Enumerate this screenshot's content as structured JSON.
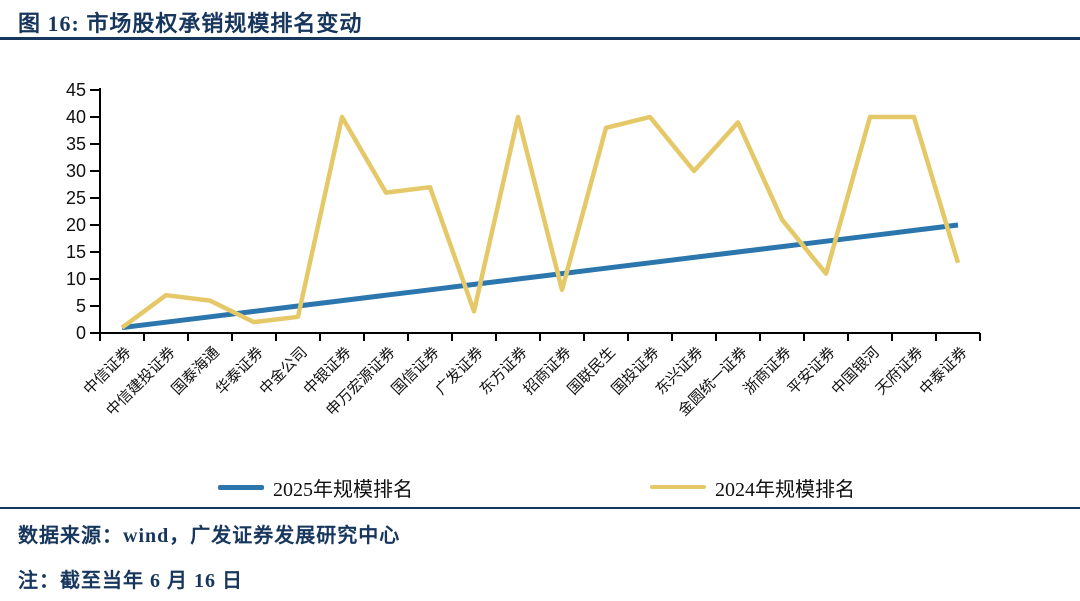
{
  "page": {
    "title": "图 16: 市场股权承销规模排名变动",
    "source": "数据来源：wind，广发证券发展研究中心",
    "note": "注：截至当年 6 月 16 日"
  },
  "colors": {
    "heading_navy": "#17365d",
    "axis_black": "#000000",
    "series_2025_blue": "#2b76ac",
    "series_2024_yellow": "#e5c868"
  },
  "chart_data": {
    "type": "line",
    "title": "市场股权承销规模排名变动",
    "categories": [
      "中信证券",
      "中信建投证券",
      "国泰海通",
      "华泰证券",
      "中金公司",
      "中银证券",
      "申万宏源证券",
      "国信证券",
      "广发证券",
      "东方证券",
      "招商证券",
      "国联民生",
      "国投证券",
      "东兴证券",
      "金圆统一证券",
      "浙商证券",
      "平安证券",
      "中国银河",
      "天府证券",
      "中泰证券"
    ],
    "series": [
      {
        "name": "2025年规模排名",
        "color": "#2b76ac",
        "values": [
          1,
          2,
          3,
          4,
          5,
          6,
          7,
          8,
          9,
          10,
          11,
          12,
          13,
          14,
          15,
          16,
          17,
          18,
          19,
          20
        ]
      },
      {
        "name": "2024年规模排名",
        "color": "#e5c868",
        "values": [
          1,
          7,
          6,
          2,
          3,
          40,
          26,
          27,
          4,
          40,
          8,
          38,
          40,
          30,
          39,
          21,
          11,
          40,
          40,
          13
        ]
      }
    ],
    "xlabel": "",
    "ylabel": "",
    "ylim": [
      0,
      45
    ],
    "ytick_step": 5,
    "grid": false,
    "legend_position": "bottom"
  }
}
